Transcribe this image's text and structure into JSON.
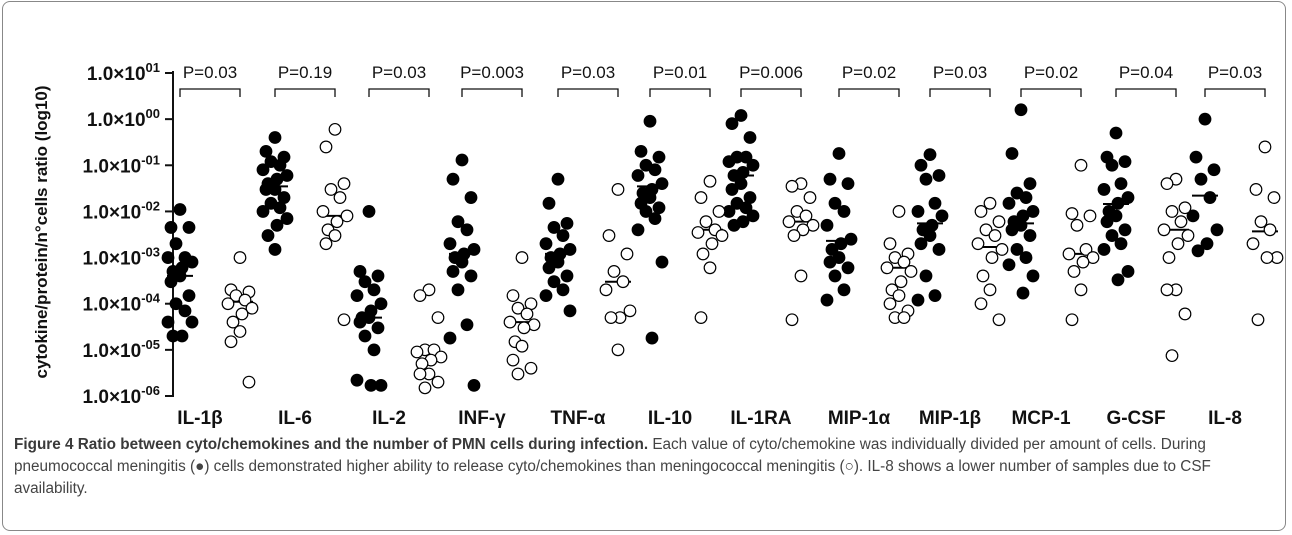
{
  "chart_data": {
    "type": "scatter",
    "title": "",
    "ylabel": "cytokine/protein/n°cells ratio (log10)",
    "yscale": "log",
    "ylim": [
      1e-06,
      10
    ],
    "y_tick_labels": [
      "1.0×10^01",
      "1.0×10^00",
      "1.0×10^-01",
      "1.0×10^-02",
      "1.0×10^-03",
      "1.0×10^-04",
      "1.0×10^-05",
      "1.0×10^-06"
    ],
    "categories": [
      "IL-1β",
      "IL-6",
      "IL-2",
      "INF-γ",
      "TNF-α",
      "IL-10",
      "IL-1RA",
      "MIP-1α",
      "MIP-1β",
      "MCP-1",
      "G-CSF",
      "IL-8"
    ],
    "p_values": [
      "P=0.03",
      "P=0.19",
      "P=0.03",
      "P=0.003",
      "P=0.03",
      "P=0.01",
      "P=0.006",
      "P=0.02",
      "P=0.03",
      "P=0.02",
      "P=0.04",
      "P=0.03"
    ],
    "marker_filled": "#000000",
    "marker_open": "#ffffff",
    "series": [
      {
        "marker": "filled",
        "medians": [
          0.0004,
          0.035,
          5e-05,
          0.0012,
          0.0012,
          0.035,
          0.06,
          0.0023,
          0.0055,
          0.0055,
          0.0145,
          0.022
        ],
        "values": [
          [
            0.011,
            0.0045,
            0.0045,
            0.002,
            0.001,
            0.001,
            0.0008,
            0.0006,
            0.0005,
            0.0004,
            0.0003,
            0.00015,
            0.0001,
            7e-05,
            4e-05,
            4e-05,
            2e-05,
            2e-05
          ],
          [
            0.4,
            0.2,
            0.15,
            0.12,
            0.1,
            0.08,
            0.06,
            0.05,
            0.04,
            0.03,
            0.03,
            0.02,
            0.015,
            0.012,
            0.01,
            0.007,
            0.005,
            0.003,
            0.0015
          ],
          [
            0.01,
            0.0005,
            0.0004,
            0.0003,
            0.0002,
            0.00015,
            0.0001,
            7e-05,
            5e-05,
            5e-05,
            4e-05,
            3e-05,
            2e-05,
            1e-05,
            2.2e-06,
            1.7e-06,
            1.7e-06
          ],
          [
            0.13,
            0.05,
            0.02,
            0.006,
            0.004,
            0.002,
            0.0015,
            0.0012,
            0.001,
            0.0008,
            0.0005,
            0.0004,
            0.0002,
            3.5e-05,
            1.8e-05,
            1.7e-06
          ],
          [
            0.05,
            0.015,
            0.0055,
            0.0045,
            0.003,
            0.002,
            0.0015,
            0.0012,
            0.001,
            0.0008,
            0.0006,
            0.0004,
            0.0003,
            0.0002,
            0.00015,
            7e-05
          ],
          [
            0.9,
            0.2,
            0.15,
            0.1,
            0.08,
            0.06,
            0.04,
            0.03,
            0.025,
            0.02,
            0.015,
            0.012,
            0.01,
            0.007,
            0.004,
            0.0008,
            1.8e-05
          ],
          [
            1.2,
            0.8,
            0.4,
            0.15,
            0.15,
            0.12,
            0.1,
            0.07,
            0.06,
            0.04,
            0.03,
            0.02,
            0.015,
            0.012,
            0.01,
            0.008,
            0.006,
            0.005
          ],
          [
            0.18,
            0.05,
            0.04,
            0.015,
            0.01,
            0.005,
            0.0025,
            0.002,
            0.0015,
            0.001,
            0.0008,
            0.0006,
            0.0004,
            0.0002,
            0.00012
          ],
          [
            0.17,
            0.1,
            0.06,
            0.05,
            0.015,
            0.01,
            0.008,
            0.005,
            0.004,
            0.003,
            0.002,
            0.0015,
            0.0004,
            0.00015,
            0.00012
          ],
          [
            1.6,
            0.18,
            0.04,
            0.025,
            0.02,
            0.015,
            0.01,
            0.008,
            0.006,
            0.005,
            0.004,
            0.003,
            0.0015,
            0.001,
            0.0007,
            0.0004,
            0.00017
          ],
          [
            0.5,
            0.15,
            0.12,
            0.1,
            0.04,
            0.03,
            0.02,
            0.015,
            0.01,
            0.008,
            0.006,
            0.004,
            0.003,
            0.002,
            0.0015,
            0.0005,
            0.00033
          ],
          [
            1.0,
            0.15,
            0.08,
            0.05,
            0.02,
            0.008,
            0.004,
            0.002,
            0.0014
          ]
        ]
      },
      {
        "marker": "open",
        "medians": [
          0.00011,
          0.008,
          8e-06,
          4e-05,
          0.0003,
          0.004,
          0.006,
          0.0006,
          0.0017,
          0.0012,
          0.004,
          0.0037
        ],
        "values": [
          [
            0.001,
            0.0002,
            0.00018,
            0.00015,
            0.00012,
            0.0001,
            8e-05,
            6e-05,
            4e-05,
            2.5e-05,
            1.5e-05,
            2e-06
          ],
          [
            0.6,
            0.25,
            0.04,
            0.03,
            0.02,
            0.01,
            0.008,
            0.006,
            0.004,
            0.003,
            0.002,
            4.5e-05
          ],
          [
            0.0002,
            0.00015,
            5e-05,
            1e-05,
            1e-05,
            9e-06,
            7e-06,
            6e-06,
            5e-06,
            3e-06,
            3e-06,
            2e-06,
            1.5e-06
          ],
          [
            0.001,
            0.00015,
            0.0001,
            8e-05,
            6e-05,
            4e-05,
            3.5e-05,
            3e-05,
            1.5e-05,
            1.2e-05,
            6e-06,
            4e-06,
            3e-06
          ],
          [
            0.03,
            0.003,
            0.0012,
            0.0005,
            0.0003,
            0.0002,
            7e-05,
            5e-05,
            5e-05,
            1e-05
          ],
          [
            0.045,
            0.02,
            0.01,
            0.006,
            0.004,
            0.0035,
            0.003,
            0.002,
            0.0012,
            0.0006,
            5e-05
          ],
          [
            0.04,
            0.035,
            0.02,
            0.01,
            0.008,
            0.006,
            0.005,
            0.004,
            0.003,
            0.0004,
            4.5e-05
          ],
          [
            0.01,
            0.002,
            0.0012,
            0.001,
            0.0008,
            0.0006,
            0.0005,
            0.0003,
            0.0002,
            0.00015,
            0.0001,
            7e-05,
            5e-05,
            5e-05
          ],
          [
            0.015,
            0.01,
            0.006,
            0.004,
            0.003,
            0.002,
            0.0015,
            0.001,
            0.0004,
            0.0002,
            0.0001,
            4.5e-05
          ],
          [
            0.1,
            0.009,
            0.008,
            0.005,
            0.0015,
            0.0012,
            0.001,
            0.0008,
            0.0005,
            0.0002,
            4.5e-05
          ],
          [
            0.05,
            0.04,
            0.012,
            0.01,
            0.006,
            0.004,
            0.003,
            0.002,
            0.001,
            0.0002,
            0.0002,
            6e-05,
            7.5e-06
          ],
          [
            0.25,
            0.03,
            0.02,
            0.006,
            0.004,
            0.002,
            0.001,
            0.001,
            4.5e-05
          ]
        ]
      }
    ]
  },
  "caption": {
    "figure_label": "Figure 4 Ratio between cyto/chemokines and the number of PMN cells during infection.",
    "text": " Each value of cyto/chemokine was individually divided per amount of cells. During pneumococcal meningitis (●) cells demonstrated higher ability to release cyto/chemokines than meningococcal meningitis (○). IL-8 shows a lower number of samples due to CSF availability."
  }
}
